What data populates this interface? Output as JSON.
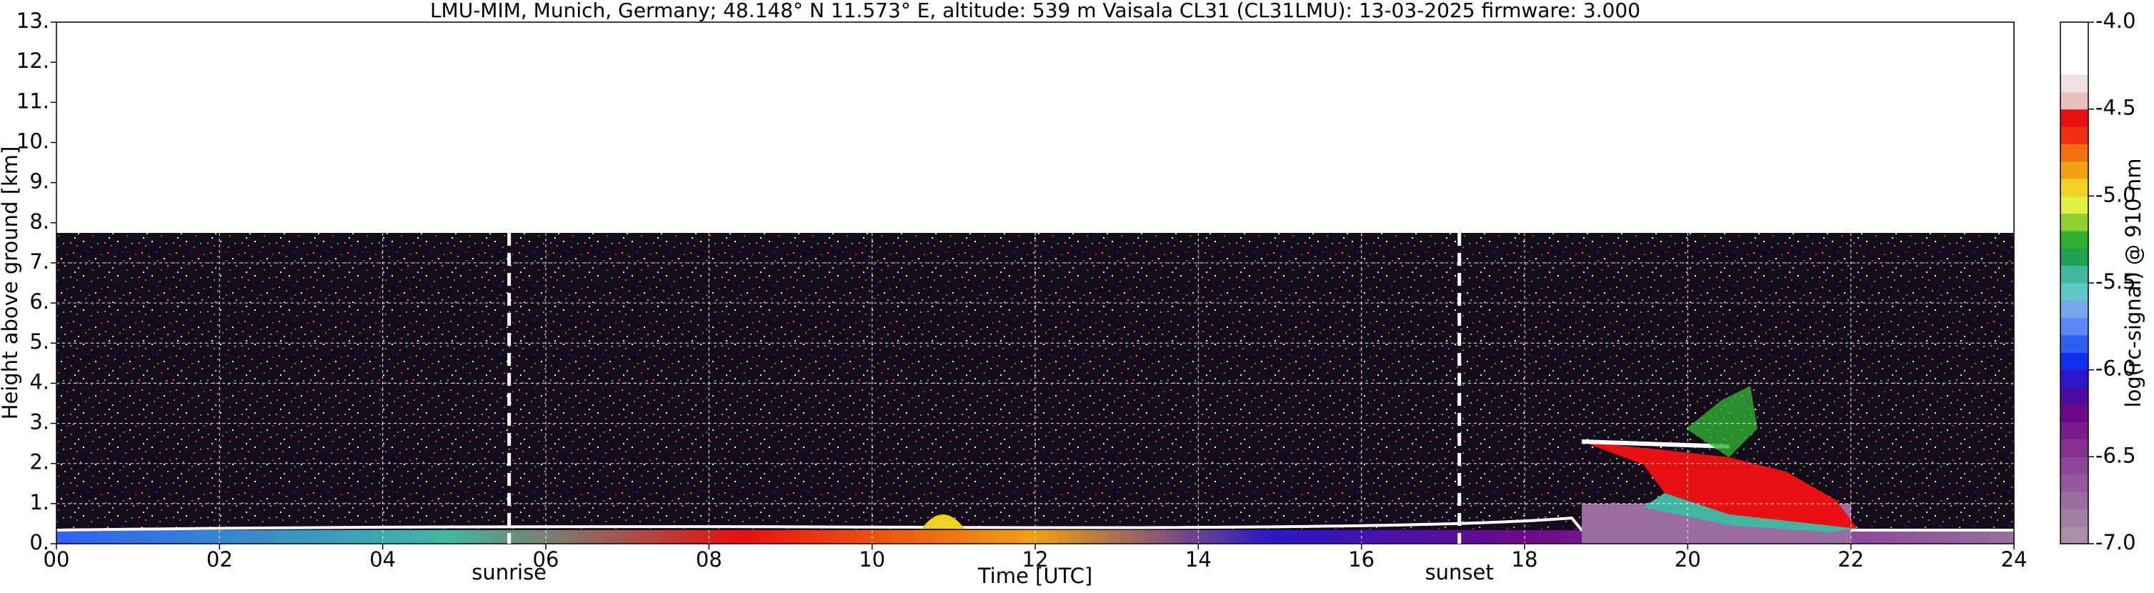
{
  "chart_data": {
    "type": "heatmap",
    "title": "LMU-MIM, Munich, Germany; 48.148° N 11.573° E, altitude: 539 m    Vaisala CL31 (CL31LMU): 13-03-2025    firmware: 3.000",
    "xlabel": "Time [UTC]",
    "ylabel": "Height above ground [km]",
    "xlim": [
      0,
      24
    ],
    "xticks": [
      {
        "value": 0,
        "label": "00"
      },
      {
        "value": 2,
        "label": "02"
      },
      {
        "value": 4,
        "label": "04"
      },
      {
        "value": 6,
        "label": "06"
      },
      {
        "value": 8,
        "label": "08"
      },
      {
        "value": 10,
        "label": "10"
      },
      {
        "value": 12,
        "label": "12"
      },
      {
        "value": 14,
        "label": "14"
      },
      {
        "value": 16,
        "label": "16"
      },
      {
        "value": 18,
        "label": "18"
      },
      {
        "value": 20,
        "label": "20"
      },
      {
        "value": 22,
        "label": "22"
      },
      {
        "value": 24,
        "label": "24"
      }
    ],
    "ylim": [
      0,
      13
    ],
    "yticks": [
      {
        "value": 0,
        "label": "0."
      },
      {
        "value": 1,
        "label": "1."
      },
      {
        "value": 2,
        "label": "2."
      },
      {
        "value": 3,
        "label": "3."
      },
      {
        "value": 4,
        "label": "4."
      },
      {
        "value": 5,
        "label": "5."
      },
      {
        "value": 6,
        "label": "6."
      },
      {
        "value": 7,
        "label": "7."
      },
      {
        "value": 8,
        "label": "8."
      },
      {
        "value": 9,
        "label": "9."
      },
      {
        "value": 10,
        "label": "10."
      },
      {
        "value": 11,
        "label": "11."
      },
      {
        "value": 12,
        "label": "12."
      },
      {
        "value": 13,
        "label": "13."
      }
    ],
    "grid": true,
    "annotations": [
      {
        "label": "sunrise",
        "x": 5.55
      },
      {
        "label": "sunset",
        "x": 17.2
      }
    ],
    "colorbar": {
      "label": "log(rc-signal) @ 910 nm",
      "clim": [
        -7,
        -4
      ],
      "ticks": [
        {
          "value": -7,
          "label": "-7.0"
        },
        {
          "value": -6.5,
          "label": "-6.5"
        },
        {
          "value": -6,
          "label": "-6.0"
        },
        {
          "value": -5.5,
          "label": "-5.5"
        },
        {
          "value": -5,
          "label": "-5.0"
        },
        {
          "value": -4.5,
          "label": "-4.5"
        },
        {
          "value": -4,
          "label": "-4.0"
        }
      ],
      "colors": [
        "#a890a8",
        "#a07fa3",
        "#9a6ca0",
        "#94599c",
        "#8c4596",
        "#85338f",
        "#7a1c8a",
        "#6c0a8a",
        "#4d0c9f",
        "#2a18c8",
        "#1030f0",
        "#2f60f5",
        "#5a88f5",
        "#7aa8f0",
        "#60c8c8",
        "#40b8a0",
        "#20a050",
        "#2fb030",
        "#90d030",
        "#e0f040",
        "#f0d020",
        "#f0a010",
        "#f07010",
        "#f03010",
        "#e81010",
        "#e8c0c0",
        "#f0e0e0",
        "#ffffff",
        "#ffffff",
        "#ffffff"
      ]
    }
  }
}
